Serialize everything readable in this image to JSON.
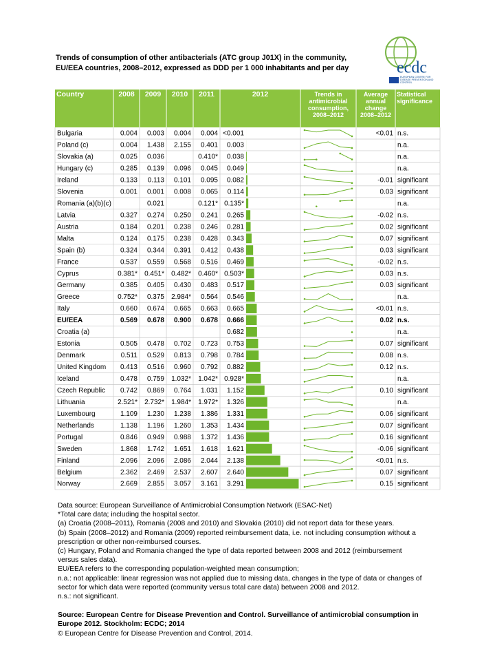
{
  "header": {
    "title_lines": [
      "Trends of consumption of other antibacterials (ATC group J01X) in the community,",
      "EU/EEA countries, 2008–2012, expressed as DDD per 1 000 inhabitants and per day"
    ],
    "logo": {
      "text": "ecdc",
      "subtitle": "EUROPEAN CENTRE FOR DISEASE PREVENTION AND CONTROL"
    }
  },
  "table": {
    "columns": [
      "Country",
      "2008",
      "2009",
      "2010",
      "2011",
      "2012",
      "Trends in antimicrobial consumption, 2008–2012",
      "Average annual change 2008–2012",
      "Statistical significance"
    ],
    "header_color": "#8cc43f",
    "bar_color": "#6fb52c",
    "line_color": "#6fb52c",
    "bar_xlim": [
      0,
      3.4
    ],
    "rows": [
      {
        "country": "Bulgaria",
        "values": [
          0.004,
          0.003,
          0.004,
          0.004,
          0.0005
        ],
        "value_labels": [
          "0.004",
          "0.003",
          "0.004",
          "0.004",
          "<0.001"
        ],
        "change": "<0.01",
        "significance": "n.s."
      },
      {
        "country": "Poland (c)",
        "values": [
          0.004,
          1.438,
          2.155,
          0.401,
          0.003
        ],
        "value_labels": [
          "0.004",
          "1.438",
          "2.155",
          "0.401",
          "0.003"
        ],
        "change": null,
        "significance": "n.a."
      },
      {
        "country": "Slovakia (a)",
        "values": [
          0.025,
          0.036,
          null,
          0.41,
          0.038
        ],
        "value_labels": [
          "0.025",
          "0.036",
          null,
          "0.410*",
          "0.038"
        ],
        "change": null,
        "significance": "n.a."
      },
      {
        "country": "Hungary (c)",
        "values": [
          0.285,
          0.139,
          0.096,
          0.045,
          0.049
        ],
        "value_labels": [
          "0.285",
          "0.139",
          "0.096",
          "0.045",
          "0.049"
        ],
        "change": null,
        "significance": "n.a."
      },
      {
        "country": "Ireland",
        "values": [
          0.133,
          0.113,
          0.101,
          0.095,
          0.082
        ],
        "value_labels": [
          "0.133",
          "0.113",
          "0.101",
          "0.095",
          "0.082"
        ],
        "change": "-0.01",
        "significance": "significant"
      },
      {
        "country": "Slovenia",
        "values": [
          0.001,
          0.001,
          0.008,
          0.065,
          0.114
        ],
        "value_labels": [
          "0.001",
          "0.001",
          "0.008",
          "0.065",
          "0.114"
        ],
        "change": "0.03",
        "significance": "significant"
      },
      {
        "country": "Romania (a)(b)(c)",
        "values": [
          null,
          0.021,
          null,
          0.121,
          0.135
        ],
        "value_labels": [
          null,
          "0.021",
          null,
          "0.121*",
          "0.135*"
        ],
        "change": null,
        "significance": "n.a."
      },
      {
        "country": "Latvia",
        "values": [
          0.327,
          0.274,
          0.25,
          0.241,
          0.265
        ],
        "value_labels": [
          "0.327",
          "0.274",
          "0.250",
          "0.241",
          "0.265"
        ],
        "change": "-0.02",
        "significance": "n.s."
      },
      {
        "country": "Austria",
        "values": [
          0.184,
          0.201,
          0.238,
          0.246,
          0.281
        ],
        "value_labels": [
          "0.184",
          "0.201",
          "0.238",
          "0.246",
          "0.281"
        ],
        "change": "0.02",
        "significance": "significant"
      },
      {
        "country": "Malta",
        "values": [
          0.124,
          0.175,
          0.238,
          0.428,
          0.343
        ],
        "value_labels": [
          "0.124",
          "0.175",
          "0.238",
          "0.428",
          "0.343"
        ],
        "change": "0.07",
        "significance": "significant"
      },
      {
        "country": "Spain (b)",
        "values": [
          0.324,
          0.344,
          0.391,
          0.412,
          0.438
        ],
        "value_labels": [
          "0.324",
          "0.344",
          "0.391",
          "0.412",
          "0.438"
        ],
        "change": "0.03",
        "significance": "significant"
      },
      {
        "country": "France",
        "values": [
          0.537,
          0.559,
          0.568,
          0.516,
          0.469
        ],
        "value_labels": [
          "0.537",
          "0.559",
          "0.568",
          "0.516",
          "0.469"
        ],
        "change": "-0.02",
        "significance": "n.s."
      },
      {
        "country": "Cyprus",
        "values": [
          0.381,
          0.451,
          0.482,
          0.46,
          0.503
        ],
        "value_labels": [
          "0.381*",
          "0.451*",
          "0.482*",
          "0.460*",
          "0.503*"
        ],
        "change": "0.03",
        "significance": "n.s."
      },
      {
        "country": "Germany",
        "values": [
          0.385,
          0.405,
          0.43,
          0.483,
          0.517
        ],
        "value_labels": [
          "0.385",
          "0.405",
          "0.430",
          "0.483",
          "0.517"
        ],
        "change": "0.03",
        "significance": "significant"
      },
      {
        "country": "Greece",
        "values": [
          0.752,
          0.375,
          2.984,
          0.564,
          0.546
        ],
        "value_labels": [
          "0.752*",
          "0.375",
          "2.984*",
          "0.564",
          "0.546"
        ],
        "change": null,
        "significance": "n.a."
      },
      {
        "country": "Italy",
        "values": [
          0.66,
          0.674,
          0.665,
          0.663,
          0.665
        ],
        "value_labels": [
          "0.660",
          "0.674",
          "0.665",
          "0.663",
          "0.665"
        ],
        "change": "<0.01",
        "significance": "n.s."
      },
      {
        "country": "EU/EEA",
        "values": [
          0.569,
          0.678,
          0.9,
          0.678,
          0.666
        ],
        "value_labels": [
          "0.569",
          "0.678",
          "0.900",
          "0.678",
          "0.666"
        ],
        "change": "0.02",
        "significance": "n.s.",
        "highlight": true
      },
      {
        "country": "Croatia (a)",
        "values": [
          null,
          null,
          null,
          null,
          0.682
        ],
        "value_labels": [
          null,
          null,
          null,
          null,
          "0.682"
        ],
        "change": null,
        "significance": "n.a."
      },
      {
        "country": "Estonia",
        "values": [
          0.505,
          0.478,
          0.702,
          0.723,
          0.753
        ],
        "value_labels": [
          "0.505",
          "0.478",
          "0.702",
          "0.723",
          "0.753"
        ],
        "change": "0.07",
        "significance": "significant"
      },
      {
        "country": "Denmark",
        "values": [
          0.511,
          0.529,
          0.813,
          0.798,
          0.784
        ],
        "value_labels": [
          "0.511",
          "0.529",
          "0.813",
          "0.798",
          "0.784"
        ],
        "change": "0.08",
        "significance": "n.s."
      },
      {
        "country": "United Kingdom",
        "values": [
          0.413,
          0.516,
          0.96,
          0.792,
          0.882
        ],
        "value_labels": [
          "0.413",
          "0.516",
          "0.960",
          "0.792",
          "0.882"
        ],
        "change": "0.12",
        "significance": "n.s."
      },
      {
        "country": "Iceland",
        "values": [
          0.478,
          0.759,
          1.032,
          1.042,
          0.928
        ],
        "value_labels": [
          "0.478",
          "0.759",
          "1.032*",
          "1.042*",
          "0.928*"
        ],
        "change": null,
        "significance": "n.a."
      },
      {
        "country": "Czech Republic",
        "values": [
          0.742,
          0.869,
          0.764,
          1.031,
          1.152
        ],
        "value_labels": [
          "0.742",
          "0.869",
          "0.764",
          "1.031",
          "1.152"
        ],
        "change": "0.10",
        "significance": "significant"
      },
      {
        "country": "Lithuania",
        "values": [
          2.521,
          2.732,
          1.984,
          1.972,
          1.326
        ],
        "value_labels": [
          "2.521*",
          "2.732*",
          "1.984*",
          "1.972*",
          "1.326"
        ],
        "change": null,
        "significance": "n.a."
      },
      {
        "country": "Luxembourg",
        "values": [
          1.109,
          1.23,
          1.238,
          1.386,
          1.331
        ],
        "value_labels": [
          "1.109",
          "1.230",
          "1.238",
          "1.386",
          "1.331"
        ],
        "change": "0.06",
        "significance": "significant"
      },
      {
        "country": "Netherlands",
        "values": [
          1.138,
          1.196,
          1.26,
          1.353,
          1.434
        ],
        "value_labels": [
          "1.138",
          "1.196",
          "1.260",
          "1.353",
          "1.434"
        ],
        "change": "0.07",
        "significance": "significant"
      },
      {
        "country": "Portugal",
        "values": [
          0.846,
          0.949,
          0.988,
          1.372,
          1.436
        ],
        "value_labels": [
          "0.846",
          "0.949",
          "0.988",
          "1.372",
          "1.436"
        ],
        "change": "0.16",
        "significance": "significant"
      },
      {
        "country": "Sweden",
        "values": [
          1.868,
          1.742,
          1.651,
          1.618,
          1.621
        ],
        "value_labels": [
          "1.868",
          "1.742",
          "1.651",
          "1.618",
          "1.621"
        ],
        "change": "-0.06",
        "significance": "significant"
      },
      {
        "country": "Finland",
        "values": [
          2.096,
          2.096,
          2.086,
          2.044,
          2.138
        ],
        "value_labels": [
          "2.096",
          "2.096",
          "2.086",
          "2.044",
          "2.138"
        ],
        "change": "<0.01",
        "significance": "n.s."
      },
      {
        "country": "Belgium",
        "values": [
          2.362,
          2.469,
          2.537,
          2.607,
          2.64
        ],
        "value_labels": [
          "2.362",
          "2.469",
          "2.537",
          "2.607",
          "2.640"
        ],
        "change": "0.07",
        "significance": "significant"
      },
      {
        "country": "Norway",
        "values": [
          2.669,
          2.855,
          3.057,
          3.161,
          3.291
        ],
        "value_labels": [
          "2.669",
          "2.855",
          "3.057",
          "3.161",
          "3.291"
        ],
        "change": "0.15",
        "significance": "significant"
      }
    ]
  },
  "notes": [
    "Data source: European Surveillance of Antimicrobial Consumption Network (ESAC-Net)",
    "*Total care data; including the hospital sector.",
    "(a) Croatia (2008–2011), Romania (2008 and 2010) and Slovakia (2010) did not report data for these years.",
    "(b) Spain (2008–2012) and Romania (2009) reported reimbursement data, i.e. not including consumption without a prescription or other non-reimbursed courses.",
    "(c) Hungary, Poland and Romania changed the type of data reported between 2008 and 2012 (reimbursement versus sales data).",
    "EU/EEA refers to the corresponding population-weighted mean consumption;",
    "n.a.: not applicable: linear regression was not applied due to missing data, changes in the type of data or changes of sector for which data were reported (community versus total care data) between 2008 and 2012.",
    "n.s.: not significant."
  ],
  "source": "Source: European Centre for Disease Prevention and Control. Surveillance of antimicrobial consumption in Europe 2012. Stockholm: ECDC; 2014",
  "copyright": "© European Centre for Disease Prevention and Control, 2014."
}
